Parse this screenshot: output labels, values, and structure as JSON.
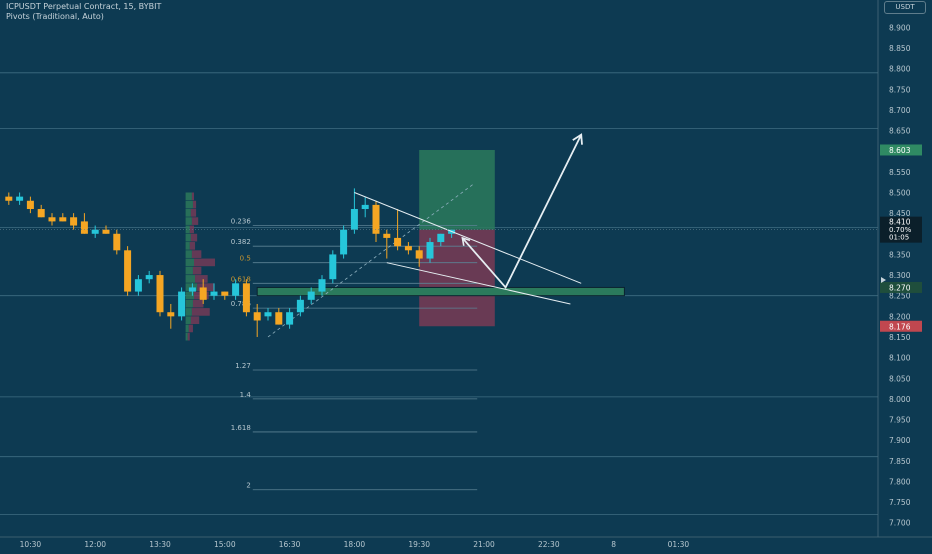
{
  "header": {
    "symbol_line": "ICPUSDT Perpetual Contract, 15, BYBIT",
    "indicator_line": "Pivots (Traditional, Auto)",
    "currency": "USDT"
  },
  "colors": {
    "background": "#0d3a52",
    "up": "#26c6da",
    "down": "#f5a623",
    "vol_up": "#2e7d5b",
    "vol_down": "#7b3b57",
    "pivot_line": "#3f6d82",
    "fib_line": "#5c8294",
    "target_zone": "#2b7a5c",
    "stop_zone": "#7a3b55",
    "drawing": "#e6eef2"
  },
  "chart_data": {
    "type": "candlestick",
    "title": "ICPUSDT Perpetual Contract, 15, BYBIT",
    "ylim": [
      7.68,
      8.93
    ],
    "x_range": [
      "10:00",
      "01:45"
    ],
    "grid": false,
    "x_ticks": [
      "10:30",
      "12:00",
      "13:30",
      "15:00",
      "16:30",
      "18:00",
      "19:30",
      "21:00",
      "22:30",
      "8",
      "01:30"
    ],
    "y_ticks": [
      "8.900",
      "8.850",
      "8.800",
      "8.750",
      "8.700",
      "8.650",
      "8.600",
      "8.550",
      "8.500",
      "8.450",
      "8.400",
      "8.350",
      "8.300",
      "8.250",
      "8.200",
      "8.150",
      "8.100",
      "8.050",
      "8.000",
      "7.950",
      "7.900",
      "7.850",
      "7.800",
      "7.750",
      "7.700"
    ],
    "candles": [
      {
        "t": "10:00",
        "o": 8.49,
        "h": 8.5,
        "l": 8.47,
        "c": 8.48
      },
      {
        "t": "10:15",
        "o": 8.48,
        "h": 8.5,
        "l": 8.47,
        "c": 8.49
      },
      {
        "t": "10:30",
        "o": 8.48,
        "h": 8.49,
        "l": 8.45,
        "c": 8.46
      },
      {
        "t": "10:45",
        "o": 8.46,
        "h": 8.47,
        "l": 8.44,
        "c": 8.44
      },
      {
        "t": "11:00",
        "o": 8.44,
        "h": 8.45,
        "l": 8.42,
        "c": 8.43
      },
      {
        "t": "11:15",
        "o": 8.44,
        "h": 8.45,
        "l": 8.43,
        "c": 8.43
      },
      {
        "t": "11:30",
        "o": 8.44,
        "h": 8.45,
        "l": 8.41,
        "c": 8.42
      },
      {
        "t": "11:45",
        "o": 8.43,
        "h": 8.45,
        "l": 8.4,
        "c": 8.4
      },
      {
        "t": "12:00",
        "o": 8.4,
        "h": 8.42,
        "l": 8.39,
        "c": 8.41
      },
      {
        "t": "12:15",
        "o": 8.41,
        "h": 8.42,
        "l": 8.4,
        "c": 8.4
      },
      {
        "t": "12:30",
        "o": 8.4,
        "h": 8.41,
        "l": 8.35,
        "c": 8.36
      },
      {
        "t": "12:45",
        "o": 8.36,
        "h": 8.37,
        "l": 8.25,
        "c": 8.26
      },
      {
        "t": "13:00",
        "o": 8.26,
        "h": 8.3,
        "l": 8.25,
        "c": 8.29
      },
      {
        "t": "13:15",
        "o": 8.29,
        "h": 8.31,
        "l": 8.28,
        "c": 8.3
      },
      {
        "t": "13:30",
        "o": 8.3,
        "h": 8.31,
        "l": 8.2,
        "c": 8.21
      },
      {
        "t": "13:45",
        "o": 8.21,
        "h": 8.23,
        "l": 8.17,
        "c": 8.2
      },
      {
        "t": "14:00",
        "o": 8.2,
        "h": 8.27,
        "l": 8.19,
        "c": 8.26
      },
      {
        "t": "14:15",
        "o": 8.26,
        "h": 8.28,
        "l": 8.25,
        "c": 8.27
      },
      {
        "t": "14:30",
        "o": 8.27,
        "h": 8.29,
        "l": 8.23,
        "c": 8.24
      },
      {
        "t": "14:45",
        "o": 8.25,
        "h": 8.28,
        "l": 8.24,
        "c": 8.26
      },
      {
        "t": "15:00",
        "o": 8.26,
        "h": 8.26,
        "l": 8.24,
        "c": 8.25
      },
      {
        "t": "15:15",
        "o": 8.25,
        "h": 8.29,
        "l": 8.24,
        "c": 8.28
      },
      {
        "t": "15:30",
        "o": 8.28,
        "h": 8.29,
        "l": 8.2,
        "c": 8.21
      },
      {
        "t": "15:45",
        "o": 8.21,
        "h": 8.23,
        "l": 8.15,
        "c": 8.19
      },
      {
        "t": "16:00",
        "o": 8.2,
        "h": 8.22,
        "l": 8.19,
        "c": 8.21
      },
      {
        "t": "16:15",
        "o": 8.21,
        "h": 8.22,
        "l": 8.18,
        "c": 8.18
      },
      {
        "t": "16:30",
        "o": 8.18,
        "h": 8.22,
        "l": 8.17,
        "c": 8.21
      },
      {
        "t": "16:45",
        "o": 8.21,
        "h": 8.25,
        "l": 8.2,
        "c": 8.24
      },
      {
        "t": "17:00",
        "o": 8.24,
        "h": 8.27,
        "l": 8.23,
        "c": 8.26
      },
      {
        "t": "17:15",
        "o": 8.26,
        "h": 8.3,
        "l": 8.25,
        "c": 8.29
      },
      {
        "t": "17:30",
        "o": 8.29,
        "h": 8.36,
        "l": 8.28,
        "c": 8.35
      },
      {
        "t": "17:45",
        "o": 8.35,
        "h": 8.42,
        "l": 8.34,
        "c": 8.41
      },
      {
        "t": "18:00",
        "o": 8.41,
        "h": 8.51,
        "l": 8.4,
        "c": 8.46
      },
      {
        "t": "18:15",
        "o": 8.46,
        "h": 8.49,
        "l": 8.44,
        "c": 8.47
      },
      {
        "t": "18:30",
        "o": 8.47,
        "h": 8.48,
        "l": 8.38,
        "c": 8.4
      },
      {
        "t": "18:45",
        "o": 8.4,
        "h": 8.41,
        "l": 8.34,
        "c": 8.39
      },
      {
        "t": "19:00",
        "o": 8.39,
        "h": 8.46,
        "l": 8.36,
        "c": 8.37
      },
      {
        "t": "19:15",
        "o": 8.37,
        "h": 8.38,
        "l": 8.35,
        "c": 8.36
      },
      {
        "t": "19:30",
        "o": 8.36,
        "h": 8.37,
        "l": 8.32,
        "c": 8.34
      },
      {
        "t": "19:45",
        "o": 8.34,
        "h": 8.39,
        "l": 8.33,
        "c": 8.38
      },
      {
        "t": "20:00",
        "o": 8.38,
        "h": 8.4,
        "l": 8.37,
        "c": 8.4
      },
      {
        "t": "20:15",
        "o": 8.4,
        "h": 8.41,
        "l": 8.39,
        "c": 8.41
      }
    ],
    "pivot_levels": [
      8.79,
      8.655,
      8.415,
      8.25,
      8.005,
      7.86,
      7.72
    ],
    "fibonacci": [
      {
        "label": "0.236",
        "value": 8.42
      },
      {
        "label": "0.382",
        "value": 8.37
      },
      {
        "label": "0.5",
        "value": 8.33
      },
      {
        "label": "0.618",
        "value": 8.28
      },
      {
        "label": "0.786",
        "value": 8.22
      },
      {
        "label": "1.27",
        "value": 8.07
      },
      {
        "label": "1.4",
        "value": 8.0
      },
      {
        "label": "1.618",
        "value": 7.92
      },
      {
        "label": "2",
        "value": 7.78
      }
    ],
    "long_position": {
      "entry": 8.41,
      "target": 8.603,
      "stop": 8.176,
      "from": "19:30",
      "to": "21:15"
    },
    "support_zone": {
      "top": 8.27,
      "bottom": 8.25,
      "from": "15:45",
      "to": "00:15"
    },
    "price_labels": [
      {
        "label": "8.603",
        "value": 8.603,
        "kind": "target"
      },
      {
        "label": "8.410",
        "value": 8.41,
        "kind": "current"
      },
      {
        "label": "0.70%",
        "value": 8.41,
        "kind": "change"
      },
      {
        "label": "01:05",
        "value": 8.41,
        "kind": "countdown"
      },
      {
        "label": "8.270",
        "value": 8.27,
        "kind": "zone"
      },
      {
        "label": "8.176",
        "value": 8.176,
        "kind": "stop"
      }
    ],
    "volume_profile": [
      {
        "price": 8.49,
        "up": 0.3,
        "down": 0.1
      },
      {
        "price": 8.47,
        "up": 0.35,
        "down": 0.15
      },
      {
        "price": 8.45,
        "up": 0.25,
        "down": 0.25
      },
      {
        "price": 8.43,
        "up": 0.3,
        "down": 0.3
      },
      {
        "price": 8.41,
        "up": 0.2,
        "down": 0.2
      },
      {
        "price": 8.39,
        "up": 0.25,
        "down": 0.3
      },
      {
        "price": 8.37,
        "up": 0.2,
        "down": 0.25
      },
      {
        "price": 8.35,
        "up": 0.3,
        "down": 0.45
      },
      {
        "price": 8.33,
        "up": 0.4,
        "down": 1.0
      },
      {
        "price": 8.31,
        "up": 0.35,
        "down": 0.4
      },
      {
        "price": 8.29,
        "up": 0.45,
        "down": 0.6
      },
      {
        "price": 8.27,
        "up": 0.55,
        "down": 0.8
      },
      {
        "price": 8.25,
        "up": 0.4,
        "down": 0.7
      },
      {
        "price": 8.23,
        "up": 0.35,
        "down": 0.5
      },
      {
        "price": 8.21,
        "up": 0.3,
        "down": 0.85
      },
      {
        "price": 8.19,
        "up": 0.25,
        "down": 0.4
      },
      {
        "price": 8.17,
        "up": 0.15,
        "down": 0.2
      },
      {
        "price": 8.15,
        "up": 0.1,
        "down": 0.1
      }
    ],
    "drawings": {
      "descending_wedge_upper": [
        [
          "18:00",
          8.5
        ],
        [
          "23:15",
          8.28
        ]
      ],
      "descending_wedge_lower": [
        [
          "18:45",
          8.33
        ],
        [
          "23:00",
          8.23
        ]
      ],
      "projection_path": [
        [
          "20:30",
          8.39
        ],
        [
          "21:30",
          8.27
        ],
        [
          "23:15",
          8.64
        ]
      ],
      "dashed_trend": [
        [
          "16:00",
          8.15
        ],
        [
          "20:45",
          8.52
        ]
      ]
    }
  }
}
